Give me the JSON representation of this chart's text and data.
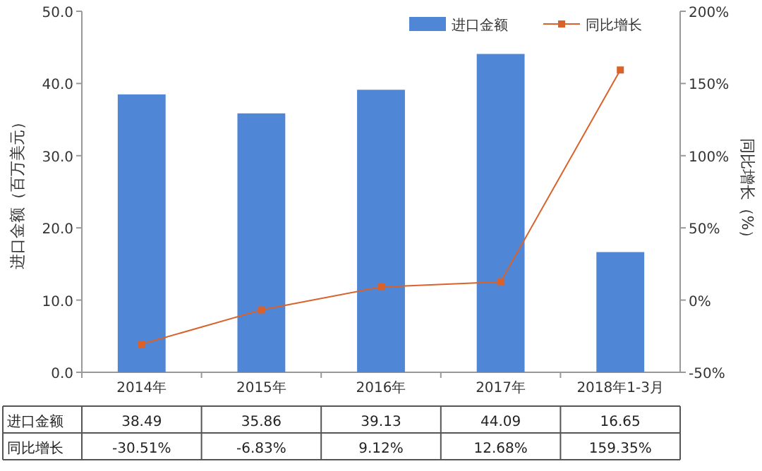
{
  "chart_data": {
    "type": "bar",
    "categories": [
      "2014年",
      "2015年",
      "2016年",
      "2017年",
      "2018年1-3月"
    ],
    "ylabel": "进口金额（百万美元）",
    "y2label": "同比增长（%）",
    "ylim": [
      0,
      50
    ],
    "yticks": [
      {
        "value": 0,
        "label": "0.0"
      },
      {
        "value": 10,
        "label": "10.0"
      },
      {
        "value": 20,
        "label": "20.0"
      },
      {
        "value": 30,
        "label": "30.0"
      },
      {
        "value": 40,
        "label": "40.0"
      },
      {
        "value": 50,
        "label": "50.0"
      }
    ],
    "y2lim": [
      -50,
      200
    ],
    "y2ticks": [
      {
        "value": -50,
        "label": "-50%"
      },
      {
        "value": 0,
        "label": "0%"
      },
      {
        "value": 50,
        "label": "50%"
      },
      {
        "value": 100,
        "label": "100%"
      },
      {
        "value": 150,
        "label": "150%"
      },
      {
        "value": 200,
        "label": "200%"
      }
    ],
    "legend": "top right",
    "grid": false,
    "series": [
      {
        "name": "进口金额",
        "color": "#4f86d6",
        "values": [
          38.49,
          35.86,
          39.13,
          44.09,
          16.65
        ],
        "value_labels": [
          "38.49",
          "35.86",
          "39.13",
          "44.09",
          "16.65"
        ]
      },
      {
        "name": "同比增长",
        "type": "line",
        "axis": "y2",
        "color": "#d9622b",
        "marker": "square",
        "values": [
          -30.51,
          -6.83,
          9.12,
          12.68,
          159.35
        ],
        "value_labels": [
          "-30.51%",
          "-6.83%",
          "9.12%",
          "12.68%",
          "159.35%"
        ]
      }
    ]
  }
}
